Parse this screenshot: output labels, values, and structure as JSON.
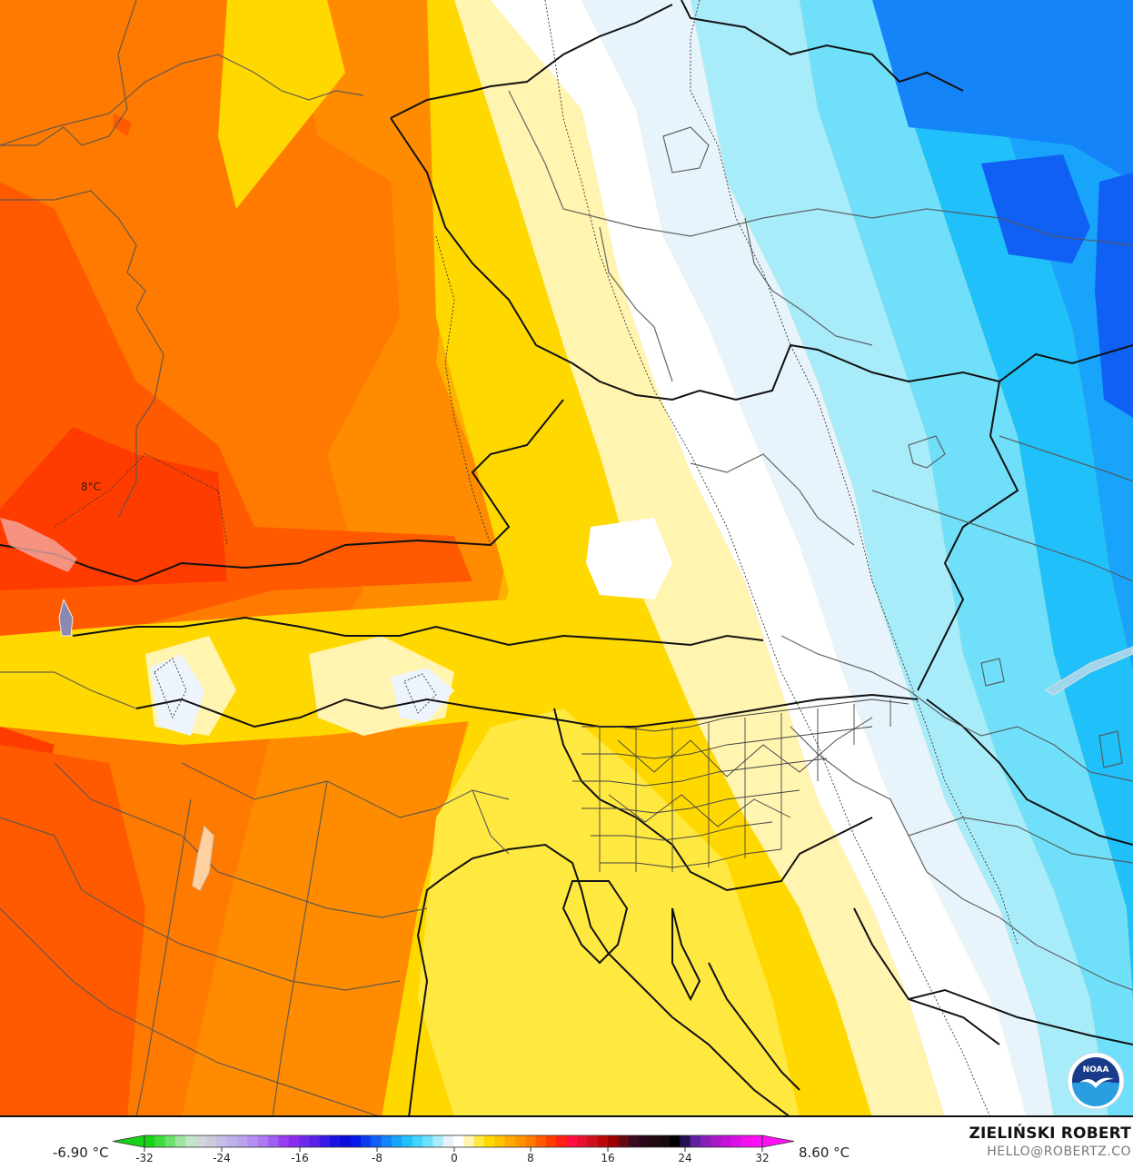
{
  "map": {
    "type": "temperature anomaly contour map",
    "region": "Central Europe / Alps / Adriatic",
    "annotation_label": "8°C",
    "logo": "noaa-logo",
    "logo_text": "NOAA"
  },
  "legend": {
    "min_value_label": "-6.90 °C",
    "max_value_label": "8.60 °C",
    "ticks": [
      "-32",
      "-24",
      "-16",
      "-8",
      "0",
      "8",
      "16",
      "24",
      "32"
    ],
    "range": [
      -32,
      32
    ],
    "colors": [
      "#18d418",
      "#3ddc3d",
      "#6ee06e",
      "#9ee39e",
      "#c4e6c8",
      "#cfd8d6",
      "#cacbdd",
      "#c5bde4",
      "#c0b0ea",
      "#bca3ee",
      "#b690f0",
      "#ad78f2",
      "#a05ff4",
      "#9a3cf2",
      "#8a2cf0",
      "#7028ee",
      "#5a20ea",
      "#3a18e6",
      "#1e10e0",
      "#0a0cd8",
      "#0818e8",
      "#0c3cf0",
      "#1060f4",
      "#1484f8",
      "#18a4fa",
      "#20c0fa",
      "#40d4fa",
      "#70e0fa",
      "#a8ecfa",
      "#e8f4fc",
      "#ffffff",
      "#fff4b0",
      "#ffe840",
      "#ffd800",
      "#ffc400",
      "#ffaa00",
      "#ff9400",
      "#ff7c00",
      "#ff5a00",
      "#ff3c00",
      "#ff2010",
      "#ff1040",
      "#e81030",
      "#d01020",
      "#b80808",
      "#9c0000",
      "#6a0a10",
      "#3a0a20",
      "#280818",
      "#200810",
      "#180810",
      "#000000",
      "#281050",
      "#6020a0",
      "#8820b8",
      "#a818c8",
      "#c410d8",
      "#dc10e4",
      "#f010f0",
      "#ff10f8"
    ]
  },
  "branding": {
    "author": "ZIELIŃSKI ROBERT",
    "email": "HELLO@ROBERTZ.CO"
  }
}
